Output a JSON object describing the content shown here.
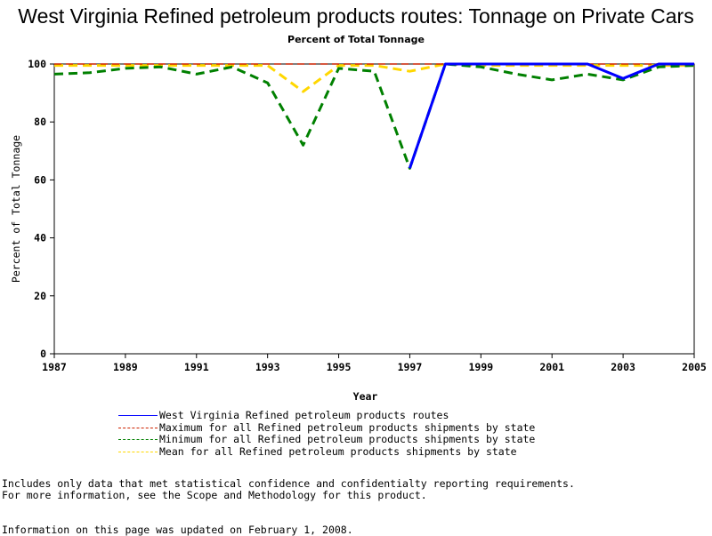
{
  "chart_data": {
    "type": "line",
    "title": "West Virginia Refined petroleum products routes: Tonnage on Private Cars",
    "subtitle": "Percent of Total Tonnage",
    "xlabel": "Year",
    "ylabel": "Percent of Total Tonnage",
    "xlim": [
      1987,
      2005
    ],
    "ylim": [
      0,
      100
    ],
    "x_ticks": [
      "1987",
      "1989",
      "1991",
      "1993",
      "1995",
      "1997",
      "1999",
      "2001",
      "2003",
      "2005"
    ],
    "y_ticks": [
      "0",
      "20",
      "40",
      "60",
      "80",
      "100"
    ],
    "x": [
      1987,
      1988,
      1989,
      1990,
      1991,
      1992,
      1993,
      1994,
      1995,
      1996,
      1997,
      1998,
      1999,
      2000,
      2001,
      2002,
      2003,
      2004,
      2005
    ],
    "series": [
      {
        "name": "West Virginia Refined petroleum products routes",
        "color": "#0000ff",
        "dash": "solid",
        "values": [
          null,
          null,
          null,
          null,
          null,
          null,
          null,
          null,
          null,
          null,
          64,
          100,
          100,
          100,
          100,
          100,
          95,
          100,
          100
        ]
      },
      {
        "name": "Maximum for all Refined petroleum products shipments by state",
        "color": "#cc2200",
        "dash": "dashed",
        "values": [
          100,
          100,
          100,
          100,
          100,
          100,
          100,
          100,
          100,
          100,
          100,
          100,
          100,
          100,
          100,
          100,
          100,
          100,
          100
        ]
      },
      {
        "name": "Minimum for all Refined petroleum products shipments by state",
        "color": "#008000",
        "dash": "dashed",
        "values": [
          96.5,
          97,
          98.5,
          99,
          96.5,
          99,
          93.5,
          72,
          98.5,
          97.5,
          64,
          100,
          99,
          96.5,
          94.5,
          96.5,
          94.5,
          99,
          99.5
        ]
      },
      {
        "name": "Mean for all Refined petroleum products shipments by state",
        "color": "#ffd700",
        "dash": "dashed",
        "values": [
          99.5,
          99.5,
          99.5,
          99.5,
          99.5,
          99.5,
          99.5,
          90.5,
          99.5,
          99.5,
          97.5,
          100,
          99.5,
          99.5,
          99.5,
          99.5,
          99.5,
          99.5,
          99.5
        ]
      }
    ],
    "legend_placement": "bottom",
    "grid": false
  },
  "notes": {
    "line1": "Includes only data that met statistical confidence and confidentialty reporting requirements.",
    "line2": "For more information, see the Scope and Methodology for this product.",
    "updated": "Information on this page was updated on February 1, 2008."
  }
}
